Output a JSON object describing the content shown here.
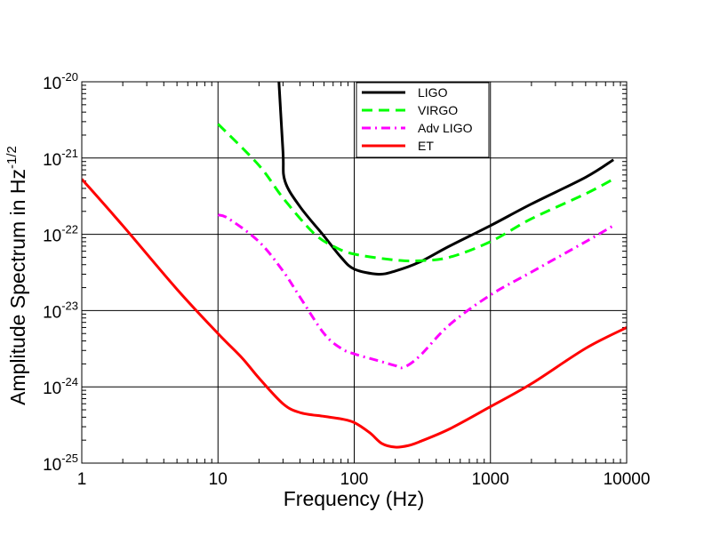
{
  "chart_data": {
    "type": "line",
    "title": "",
    "xlabel": "Frequency (Hz)",
    "ylabel": {
      "base": "Amplitude Spectrum in Hz",
      "exp": "-1/2"
    },
    "xscale": "log",
    "yscale": "log",
    "xlim": [
      1,
      10000
    ],
    "ylim": [
      1e-25,
      1e-20
    ],
    "grid": "major",
    "legend_position": "top-center",
    "x_ticks": [
      {
        "value": 1,
        "label": "1"
      },
      {
        "value": 10,
        "label": "10"
      },
      {
        "value": 100,
        "label": "100"
      },
      {
        "value": 1000,
        "label": "1000"
      },
      {
        "value": 10000,
        "label": "10000"
      }
    ],
    "y_ticks": [
      {
        "value": 1e-25,
        "base": "10",
        "exp": "-25"
      },
      {
        "value": 1e-24,
        "base": "10",
        "exp": "-24"
      },
      {
        "value": 1e-23,
        "base": "10",
        "exp": "-23"
      },
      {
        "value": 1e-22,
        "base": "10",
        "exp": "-22"
      },
      {
        "value": 1e-21,
        "base": "10",
        "exp": "-21"
      },
      {
        "value": 1e-20,
        "base": "10",
        "exp": "-20"
      }
    ],
    "series": [
      {
        "name": "LIGO",
        "color": "#000000",
        "style": "solid",
        "points": [
          [
            28,
            1e-20
          ],
          [
            30,
            1.2e-21
          ],
          [
            31,
            5e-22
          ],
          [
            40,
            2.3e-22
          ],
          [
            60,
            9.5e-23
          ],
          [
            80,
            5e-23
          ],
          [
            100,
            3.5e-23
          ],
          [
            150,
            3e-23
          ],
          [
            200,
            3.3e-23
          ],
          [
            300,
            4.3e-23
          ],
          [
            500,
            7e-23
          ],
          [
            1000,
            1.3e-22
          ],
          [
            2000,
            2.5e-22
          ],
          [
            5000,
            5.6e-22
          ],
          [
            8000,
            9.5e-22
          ]
        ]
      },
      {
        "name": "VIRGO",
        "color": "#00ff00",
        "style": "dashed",
        "points": [
          [
            10,
            2.8e-21
          ],
          [
            20,
            8e-22
          ],
          [
            30,
            3e-22
          ],
          [
            50,
            1.05e-22
          ],
          [
            70,
            7e-23
          ],
          [
            100,
            5.5e-23
          ],
          [
            200,
            4.6e-23
          ],
          [
            300,
            4.5e-23
          ],
          [
            500,
            5e-23
          ],
          [
            1000,
            8e-23
          ],
          [
            2000,
            1.6e-22
          ],
          [
            5000,
            3.4e-22
          ],
          [
            8000,
            5.3e-22
          ]
        ]
      },
      {
        "name": "Adv LIGO",
        "color": "#ff00ff",
        "style": "dashdot",
        "points": [
          [
            10,
            1.8e-22
          ],
          [
            12,
            1.6e-22
          ],
          [
            20,
            8e-23
          ],
          [
            30,
            3.3e-23
          ],
          [
            40,
            1.5e-23
          ],
          [
            60,
            5e-24
          ],
          [
            80,
            3.2e-24
          ],
          [
            100,
            2.7e-24
          ],
          [
            150,
            2.2e-24
          ],
          [
            200,
            1.9e-24
          ],
          [
            230,
            1.8e-24
          ],
          [
            300,
            2.5e-24
          ],
          [
            500,
            6.5e-24
          ],
          [
            1000,
            1.6e-23
          ],
          [
            2000,
            3.2e-23
          ],
          [
            5000,
            8e-23
          ],
          [
            8000,
            1.3e-22
          ]
        ]
      },
      {
        "name": "ET",
        "color": "#ff0000",
        "style": "solid",
        "points": [
          [
            1,
            5.3e-22
          ],
          [
            2,
            1.3e-22
          ],
          [
            5,
            1.9e-23
          ],
          [
            10,
            5e-24
          ],
          [
            15,
            2.4e-24
          ],
          [
            20,
            1.3e-24
          ],
          [
            30,
            6e-25
          ],
          [
            40,
            4.6e-25
          ],
          [
            60,
            4.1e-25
          ],
          [
            80,
            3.8e-25
          ],
          [
            100,
            3.4e-25
          ],
          [
            130,
            2.5e-25
          ],
          [
            160,
            1.8e-25
          ],
          [
            200,
            1.62e-25
          ],
          [
            250,
            1.7e-25
          ],
          [
            300,
            1.9e-25
          ],
          [
            500,
            2.8e-25
          ],
          [
            1000,
            5.5e-25
          ],
          [
            2000,
            1.1e-24
          ],
          [
            5000,
            3.2e-24
          ],
          [
            10000,
            6e-24
          ]
        ]
      }
    ]
  }
}
